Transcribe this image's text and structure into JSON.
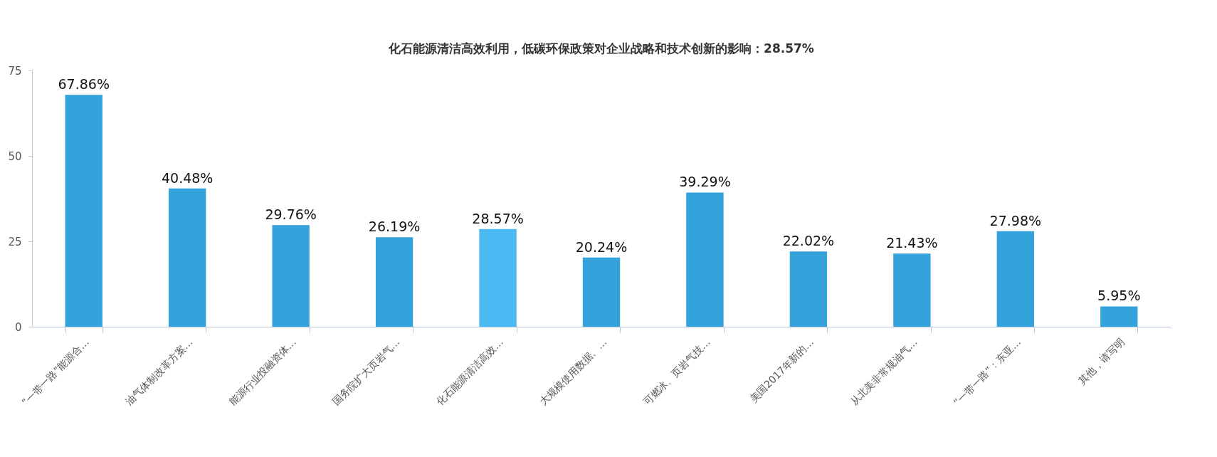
{
  "chart_data": {
    "type": "bar",
    "categories": [
      "“一带一路”能源合…",
      "油气体制改革方案…",
      "能源行业投融资体…",
      "国务院扩大页岩气…",
      "化石能源清洁高效…",
      "大规模使用数据、…",
      "可燃冰、页岩气技…",
      "美国2017年新的…",
      "从北美非常规油气…",
      "“一带一路”：东亚…",
      "其他，请写明"
    ],
    "values": [
      67.86,
      40.48,
      29.76,
      26.19,
      28.57,
      20.24,
      39.29,
      22.02,
      21.43,
      27.98,
      5.95
    ],
    "colors": [
      "#34a3db",
      "#34a3db",
      "#34a3db",
      "#34a3db",
      "#4cbaf2",
      "#34a3db",
      "#34a3db",
      "#34a3db",
      "#34a3db",
      "#34a3db",
      "#34a3db"
    ],
    "value_labels": [
      "67.86%",
      "40.48%",
      "29.76%",
      "26.19%",
      "28.57%",
      "20.24%",
      "39.29%",
      "22.02%",
      "21.43%",
      "27.98%",
      "5.95%"
    ],
    "ylim": [
      0,
      75
    ],
    "yticks": [
      0,
      25,
      50,
      75
    ],
    "grid": false,
    "annotations": [
      "化石能源清洁高效利用，低碳环保政策对企业战略和技术创新的影响：28.57%"
    ]
  }
}
